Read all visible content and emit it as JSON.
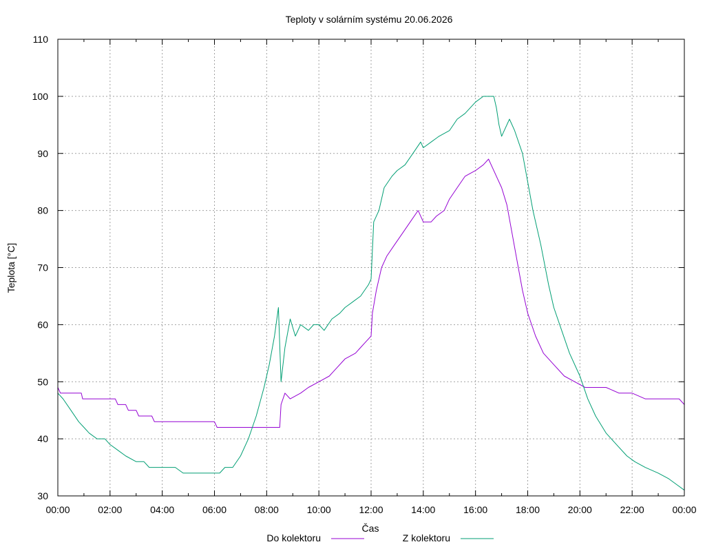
{
  "chart_data": {
    "type": "line",
    "title": "Teploty v solárním systému 20.06.2026",
    "xlabel": "Čas",
    "ylabel": "Teplota [°C]",
    "x_range_hours": [
      0,
      24
    ],
    "ylim": [
      30,
      110
    ],
    "y_ticks": [
      30,
      40,
      50,
      60,
      70,
      80,
      90,
      100,
      110
    ],
    "x_ticks": [
      {
        "h": 0,
        "label": "00:00"
      },
      {
        "h": 2,
        "label": "02:00"
      },
      {
        "h": 4,
        "label": "04:00"
      },
      {
        "h": 6,
        "label": "06:00"
      },
      {
        "h": 8,
        "label": "08:00"
      },
      {
        "h": 10,
        "label": "10:00"
      },
      {
        "h": 12,
        "label": "12:00"
      },
      {
        "h": 14,
        "label": "14:00"
      },
      {
        "h": 16,
        "label": "16:00"
      },
      {
        "h": 18,
        "label": "18:00"
      },
      {
        "h": 20,
        "label": "20:00"
      },
      {
        "h": 22,
        "label": "22:00"
      },
      {
        "h": 24,
        "label": "00:00"
      }
    ],
    "grid": true,
    "legend_position": "bottom",
    "series": [
      {
        "name": "Do kolektoru",
        "color": "#9400d3",
        "points": [
          [
            0,
            49
          ],
          [
            0.1,
            48
          ],
          [
            0.5,
            48
          ],
          [
            0.9,
            48
          ],
          [
            0.95,
            47
          ],
          [
            1.5,
            47
          ],
          [
            2.2,
            47
          ],
          [
            2.3,
            46
          ],
          [
            2.6,
            46
          ],
          [
            2.7,
            45
          ],
          [
            3.0,
            45
          ],
          [
            3.1,
            44
          ],
          [
            3.6,
            44
          ],
          [
            3.7,
            43
          ],
          [
            4.5,
            43
          ],
          [
            5.0,
            43
          ],
          [
            5.9,
            43
          ],
          [
            6.0,
            43
          ],
          [
            6.1,
            42
          ],
          [
            6.5,
            42
          ],
          [
            7.0,
            42
          ],
          [
            7.5,
            42
          ],
          [
            8.0,
            42
          ],
          [
            8.5,
            42
          ],
          [
            8.55,
            46
          ],
          [
            8.7,
            48
          ],
          [
            8.9,
            47
          ],
          [
            9.3,
            48
          ],
          [
            9.6,
            49
          ],
          [
            10.0,
            50
          ],
          [
            10.4,
            51
          ],
          [
            10.6,
            52
          ],
          [
            11.0,
            54
          ],
          [
            11.4,
            55
          ],
          [
            11.6,
            56
          ],
          [
            11.8,
            57
          ],
          [
            12.0,
            58
          ],
          [
            12.05,
            62
          ],
          [
            12.2,
            66
          ],
          [
            12.4,
            70
          ],
          [
            12.6,
            72
          ],
          [
            12.9,
            74
          ],
          [
            13.2,
            76
          ],
          [
            13.5,
            78
          ],
          [
            13.8,
            80
          ],
          [
            14.0,
            78
          ],
          [
            14.3,
            78
          ],
          [
            14.5,
            79
          ],
          [
            14.8,
            80
          ],
          [
            15.0,
            82
          ],
          [
            15.3,
            84
          ],
          [
            15.6,
            86
          ],
          [
            16.0,
            87
          ],
          [
            16.3,
            88
          ],
          [
            16.5,
            89
          ],
          [
            16.6,
            88
          ],
          [
            16.8,
            86
          ],
          [
            17.0,
            84
          ],
          [
            17.2,
            81
          ],
          [
            17.4,
            76
          ],
          [
            17.6,
            71
          ],
          [
            17.8,
            66
          ],
          [
            18.0,
            62
          ],
          [
            18.3,
            58
          ],
          [
            18.6,
            55
          ],
          [
            19.0,
            53
          ],
          [
            19.4,
            51
          ],
          [
            19.8,
            50
          ],
          [
            20.2,
            49
          ],
          [
            21.0,
            49
          ],
          [
            21.5,
            48
          ],
          [
            22.0,
            48
          ],
          [
            22.5,
            47
          ],
          [
            23.0,
            47
          ],
          [
            23.5,
            47
          ],
          [
            23.8,
            47
          ],
          [
            24.0,
            46
          ]
        ]
      },
      {
        "name": "Z kolektoru",
        "color": "#009e73",
        "points": [
          [
            0,
            48
          ],
          [
            0.2,
            47
          ],
          [
            0.5,
            45
          ],
          [
            0.8,
            43
          ],
          [
            1.0,
            42
          ],
          [
            1.2,
            41
          ],
          [
            1.5,
            40
          ],
          [
            1.8,
            40
          ],
          [
            2.0,
            39
          ],
          [
            2.3,
            38
          ],
          [
            2.6,
            37
          ],
          [
            3.0,
            36
          ],
          [
            3.3,
            36
          ],
          [
            3.5,
            35
          ],
          [
            4.0,
            35
          ],
          [
            4.5,
            35
          ],
          [
            4.8,
            34
          ],
          [
            5.5,
            34
          ],
          [
            6.0,
            34
          ],
          [
            6.2,
            34
          ],
          [
            6.4,
            35
          ],
          [
            6.7,
            35
          ],
          [
            7.0,
            37
          ],
          [
            7.3,
            40
          ],
          [
            7.6,
            44
          ],
          [
            7.9,
            49
          ],
          [
            8.1,
            53
          ],
          [
            8.3,
            58
          ],
          [
            8.45,
            63
          ],
          [
            8.55,
            50
          ],
          [
            8.7,
            56
          ],
          [
            8.9,
            61
          ],
          [
            9.1,
            58
          ],
          [
            9.3,
            60
          ],
          [
            9.6,
            59
          ],
          [
            9.8,
            60
          ],
          [
            10.0,
            60
          ],
          [
            10.2,
            59
          ],
          [
            10.5,
            61
          ],
          [
            10.8,
            62
          ],
          [
            11.0,
            63
          ],
          [
            11.3,
            64
          ],
          [
            11.6,
            65
          ],
          [
            11.9,
            67
          ],
          [
            12.0,
            68
          ],
          [
            12.1,
            78
          ],
          [
            12.3,
            80
          ],
          [
            12.5,
            84
          ],
          [
            12.8,
            86
          ],
          [
            13.0,
            87
          ],
          [
            13.3,
            88
          ],
          [
            13.6,
            90
          ],
          [
            13.9,
            92
          ],
          [
            14.0,
            91
          ],
          [
            14.3,
            92
          ],
          [
            14.6,
            93
          ],
          [
            15.0,
            94
          ],
          [
            15.3,
            96
          ],
          [
            15.6,
            97
          ],
          [
            16.0,
            99
          ],
          [
            16.3,
            100
          ],
          [
            16.5,
            100
          ],
          [
            16.7,
            100
          ],
          [
            16.8,
            98
          ],
          [
            16.9,
            95
          ],
          [
            17.0,
            93
          ],
          [
            17.1,
            94
          ],
          [
            17.3,
            96
          ],
          [
            17.5,
            94
          ],
          [
            17.8,
            90
          ],
          [
            18.0,
            85
          ],
          [
            18.2,
            80
          ],
          [
            18.5,
            74
          ],
          [
            18.8,
            67
          ],
          [
            19.0,
            63
          ],
          [
            19.3,
            59
          ],
          [
            19.6,
            55
          ],
          [
            20.0,
            51
          ],
          [
            20.3,
            47
          ],
          [
            20.6,
            44
          ],
          [
            21.0,
            41
          ],
          [
            21.4,
            39
          ],
          [
            21.8,
            37
          ],
          [
            22.1,
            36
          ],
          [
            22.5,
            35
          ],
          [
            23.0,
            34
          ],
          [
            23.4,
            33
          ],
          [
            23.7,
            32
          ],
          [
            24.0,
            31
          ]
        ]
      }
    ]
  }
}
